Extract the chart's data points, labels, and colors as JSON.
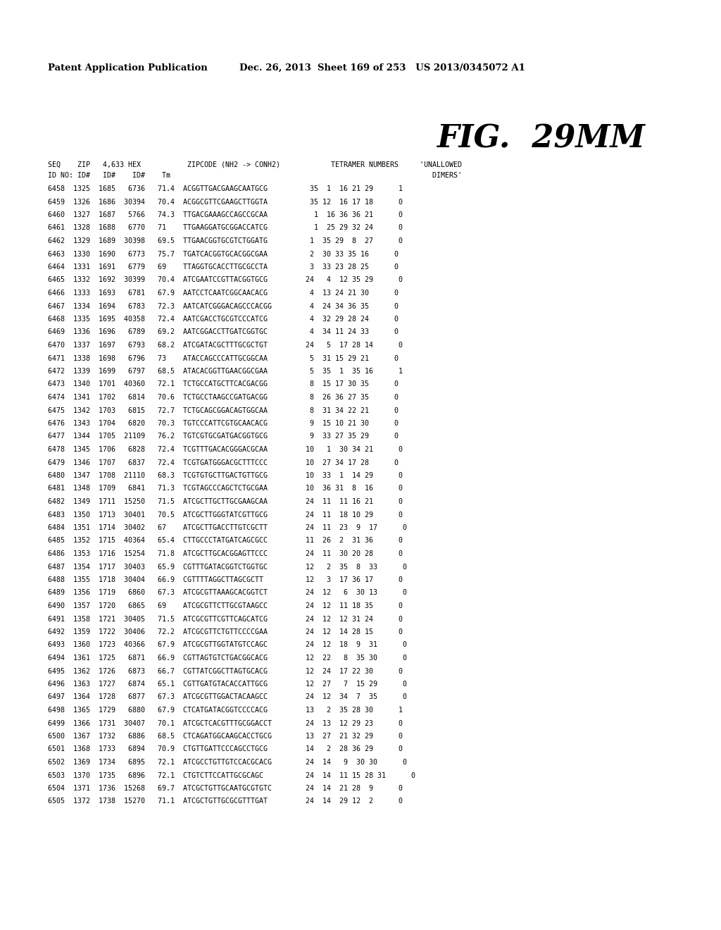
{
  "header_left": "Patent Application Publication",
  "header_right": "Dec. 26, 2013  Sheet 169 of 253   US 2013/0345072 A1",
  "fig_label": "FIG.  29MM",
  "col_header1": "SEQ    ZIP   4,633 HEX           ZIPCODE (NH2 -> CONH2)            TETRAMER NUMBERS     'UNALLOWED",
  "col_header2": "ID NO: ID#   ID#    ID#    Tm                                                              DIMERS'",
  "rows": [
    "6458  1325  1685   6736   71.4  ACGGTTGACGAAGCAATGCG          35  1  16 21 29      1",
    "6459  1326  1686  30394   70.4  ACGGCGTTCGAAGCTTGGTA          35 12  16 17 18      0",
    "6460  1327  1687   5766   74.3  TTGACGAAAGCCAGCCGCAA           1  16 36 36 21      0",
    "6461  1328  1688   6770   71    TTGAAGGATGCGGACCATCG           1  25 29 32 24      0",
    "6462  1329  1689  30398   69.5  TTGAACGGTGCGTCTGGATG          1  35 29  8  27      0",
    "6463  1330  1690   6773   75.7  TGATCACGGTGCACGGCGAA          2  30 33 35 16      0",
    "6464  1331  1691   6779   69    TTAGGTGCACCTTGCGCCTA          3  33 23 28 25      0",
    "6465  1332  1692  30399   70.4  ATCGAATCCGTTACGGTGCG         24   4  12 35 29      0",
    "6466  1333  1693   6781   67.9  AATCCTCAATCGGCAACACG          4  13 24 21 30      0",
    "6467  1334  1694   6783   72.3  AATCATCGGGACAGCCCACGG         4  24 34 36 35      0",
    "6468  1335  1695  40358   72.4  AATCGACCTGCGTCCCATCG          4  32 29 28 24      0",
    "6469  1336  1696   6789   69.2  AATCGGACCTTGATCGGTGC          4  34 11 24 33      0",
    "6470  1337  1697   6793   68.2  ATCGATACGCTTTGCGCTGT         24   5  17 28 14      0",
    "6471  1338  1698   6796   73    ATACCAGCCCATTGCGGCAA          5  31 15 29 21      0",
    "6472  1339  1699   6797   68.5  ATACACGGTTGAACGGCGAA          5  35  1  35 16      1",
    "6473  1340  1701  40360   72.1  TCTGCCATGCTTCACGACGG          8  15 17 30 35      0",
    "6474  1341  1702   6814   70.6  TCTGCCTAAGCCGATGACGG          8  26 36 27 35      0",
    "6475  1342  1703   6815   72.7  TCTGCAGCGGACAGTGGCAA          8  31 34 22 21      0",
    "6476  1343  1704   6820   70.3  TGTCCCATTCGTGCAACACG          9  15 10 21 30      0",
    "6477  1344  1705  21109   76.2  TGTCGTGCGATGACGGTGCG          9  33 27 35 29      0",
    "6478  1345  1706   6828   72.4  TCGTTTGACACGGGACGCAA         10   1  30 34 21      0",
    "6479  1346  1707   6837   72.4  TCGTGATGGGACGCTTTCCC         10  27 34 17 28      0",
    "6480  1347  1708  21110   68.3  TCGTGTGCTTGACTGTTGCG         10  33  1  14 29      0",
    "6481  1348  1709   6841   71.3  TCGTAGCCCAGCTCTGCGAA         10  36 31  8  16      0",
    "6482  1349  1711  15250   71.5  ATCGCTTGCTTGCGAAGCAA         24  11  11 16 21      0",
    "6483  1350  1713  30401   70.5  ATCGCTTGGGTATCGTTGCG         24  11  18 10 29      0",
    "6484  1351  1714  30402   67    ATCGCTTGACCTTGTCGCTT         24  11  23  9  17      0",
    "6485  1352  1715  40364   65.4  CTTGCCCTATGATCAGCGCC         11  26  2  31 36      0",
    "6486  1353  1716  15254   71.8  ATCGCTTGCACGGAGTTCCC         24  11  30 20 28      0",
    "6487  1354  1717  30403   65.9  CGTTTGATACGGTCTGGTGC         12   2  35  8  33      0",
    "6488  1355  1718  30404   66.9  CGTTTTAGGCTTAGCGCTT          12   3  17 36 17      0",
    "6489  1356  1719   6860   67.3  ATCGCGTTAAAGCACGGTCT         24  12   6  30 13      0",
    "6490  1357  1720   6865   69    ATCGCGTTCTTGCGTAAGCC         24  12  11 18 35      0",
    "6491  1358  1721  30405   71.5  ATCGCGTTCGTTCAGCATCG         24  12  12 31 24      0",
    "6492  1359  1722  30406   72.2  ATCGCGTTCTGTTCCCCGAA         24  12  14 28 15      0",
    "6493  1360  1723  40366   67.9  ATCGCGTTGGTATGTCCAGC         24  12  18  9  31      0",
    "6494  1361  1725   6871   66.9  CGTTAGTGTCTGACGGCACG         12  22   8  35 30      0",
    "6495  1362  1726   6873   66.7  CGTTATCGGCTTAGTGCACG         12  24  17 22 30      0",
    "6496  1363  1727   6874   65.1  CGTTGATGTACACCATTGCG         12  27   7  15 29      0",
    "6497  1364  1728   6877   67.3  ATCGCGTTGGACTACAAGCC         24  12  34  7  35      0",
    "6498  1365  1729   6880   67.9  CTCATGATACGGTCCCCACG         13   2  35 28 30      1",
    "6499  1366  1731  30407   70.1  ATCGCTCACGTTTGCGGACCT        24  13  12 29 23      0",
    "6500  1367  1732   6886   68.5  CTCAGATGGCAAGCACCTGCG        13  27  21 32 29      0",
    "6501  1368  1733   6894   70.9  CTGTTGATTCCCAGCCTGCG         14   2  28 36 29      0",
    "6502  1369  1734   6895   72.1  ATCGCCTGTTGTCCACGCACG        24  14   9  30 30      0",
    "6503  1370  1735   6896   72.1  CTGTCTTCCATTGCGCAGC          24  14  11 15 28 31      0",
    "6504  1371  1736  15268   69.7  ATCGCTGTTGCAATGCGTGTC        24  14  21 28  9      0",
    "6505  1372  1738  15270   71.1  ATCGCTGTTGCGCGTTTGAT         24  14  29 12  2      0"
  ]
}
